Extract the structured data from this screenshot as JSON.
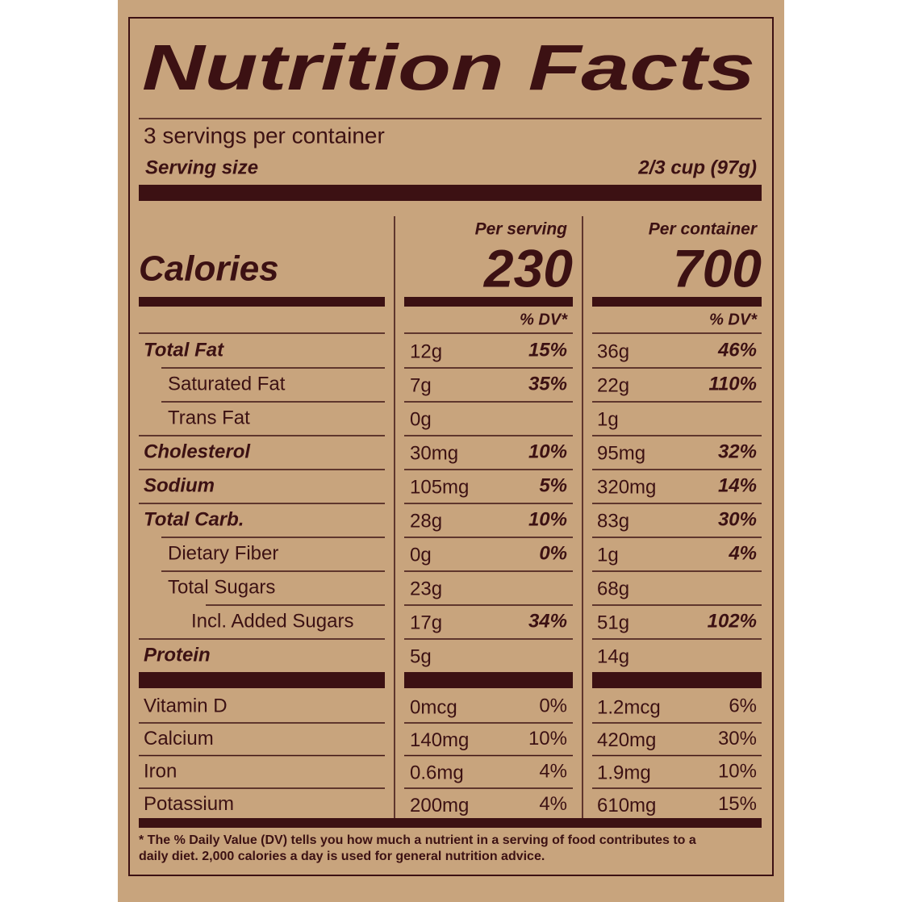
{
  "header": {
    "title": "Nutrition Facts",
    "servings": "3 servings per container",
    "serving_size_label": "Serving size",
    "serving_size_value": "2/3 cup (97g)"
  },
  "calories_label": "Calories",
  "columns": [
    {
      "heading": "Per serving",
      "calories": "230",
      "dv_heading": "% DV*"
    },
    {
      "heading": "Per container",
      "calories": "700",
      "dv_heading": "% DV*"
    }
  ],
  "nutrients": [
    {
      "name": "Total Fat",
      "values": [
        {
          "amount": "12g",
          "dv": "15%"
        },
        {
          "amount": "36g",
          "dv": "46%"
        }
      ]
    },
    {
      "name": "Saturated Fat",
      "values": [
        {
          "amount": "7g",
          "dv": "35%"
        },
        {
          "amount": "22g",
          "dv": "110%"
        }
      ]
    },
    {
      "name": "Trans Fat",
      "values": [
        {
          "amount": "0g"
        },
        {
          "amount": "1g"
        }
      ]
    },
    {
      "name": "Cholesterol",
      "values": [
        {
          "amount": "30mg",
          "dv": "10%"
        },
        {
          "amount": "95mg",
          "dv": "32%"
        }
      ]
    },
    {
      "name": "Sodium",
      "values": [
        {
          "amount": "105mg",
          "dv": "5%"
        },
        {
          "amount": "320mg",
          "dv": "14%"
        }
      ]
    },
    {
      "name": "Total Carb.",
      "values": [
        {
          "amount": "28g",
          "dv": "10%"
        },
        {
          "amount": "83g",
          "dv": "30%"
        }
      ]
    },
    {
      "name": "Dietary Fiber",
      "values": [
        {
          "amount": "0g",
          "dv": "0%"
        },
        {
          "amount": "1g",
          "dv": "4%"
        }
      ]
    },
    {
      "name": "Total Sugars",
      "values": [
        {
          "amount": "23g"
        },
        {
          "amount": "68g"
        }
      ]
    },
    {
      "name": "Incl. Added Sugars",
      "values": [
        {
          "amount": "17g",
          "dv": "34%"
        },
        {
          "amount": "51g",
          "dv": "102%"
        }
      ]
    },
    {
      "name": "Protein",
      "values": [
        {
          "amount": "5g"
        },
        {
          "amount": "14g"
        }
      ]
    }
  ],
  "vitamins": [
    {
      "name": "Vitamin D",
      "values": [
        {
          "amount": "0mcg",
          "dv": "0%"
        },
        {
          "amount": "1.2mcg",
          "dv": "6%"
        }
      ]
    },
    {
      "name": "Calcium",
      "values": [
        {
          "amount": "140mg",
          "dv": "10%"
        },
        {
          "amount": "420mg",
          "dv": "30%"
        }
      ]
    },
    {
      "name": "Iron",
      "values": [
        {
          "amount": "0.6mg",
          "dv": "4%"
        },
        {
          "amount": "1.9mg",
          "dv": "10%"
        }
      ]
    },
    {
      "name": "Potassium",
      "values": [
        {
          "amount": "200mg",
          "dv": "4%"
        },
        {
          "amount": "610mg",
          "dv": "15%"
        }
      ]
    }
  ],
  "footnote": [
    "* The % Daily Value (DV) tells you how much a nutrient in a serving of food contributes to a",
    "daily diet. 2,000 calories a day is used for general nutrition advice."
  ]
}
